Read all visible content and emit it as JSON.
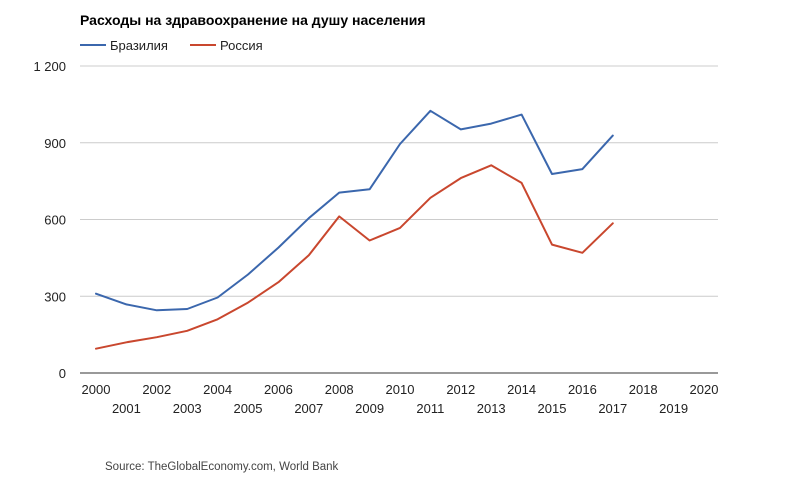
{
  "chart_data": {
    "type": "line",
    "title": "Расходы на здравоохранение на душу населения",
    "xlabel": "",
    "ylabel": "",
    "x": [
      "2000",
      "2001",
      "2002",
      "2003",
      "2004",
      "2005",
      "2006",
      "2007",
      "2008",
      "2009",
      "2010",
      "2011",
      "2012",
      "2013",
      "2014",
      "2015",
      "2016",
      "2017",
      "2018",
      "2019",
      "2020"
    ],
    "ylim": [
      0,
      1200
    ],
    "yticks": [
      0,
      300,
      600,
      900,
      1200
    ],
    "ytick_labels": [
      "0",
      "300",
      "600",
      "900",
      "1 200"
    ],
    "legend_position": "top-left",
    "grid": true,
    "series": [
      {
        "name": "Бразилия",
        "color": "#3b67ad",
        "values": [
          310,
          268,
          245,
          250,
          295,
          385,
          490,
          605,
          705,
          718,
          895,
          1025,
          952,
          975,
          1010,
          778,
          797,
          928,
          null,
          null,
          null
        ]
      },
      {
        "name": "Россия",
        "color": "#c9472e",
        "values": [
          95,
          120,
          140,
          165,
          210,
          275,
          355,
          460,
          612,
          518,
          567,
          685,
          762,
          812,
          743,
          502,
          470,
          585,
          null,
          null,
          null
        ]
      }
    ],
    "source": "Source: TheGlobalEconomy.com, World Bank"
  }
}
